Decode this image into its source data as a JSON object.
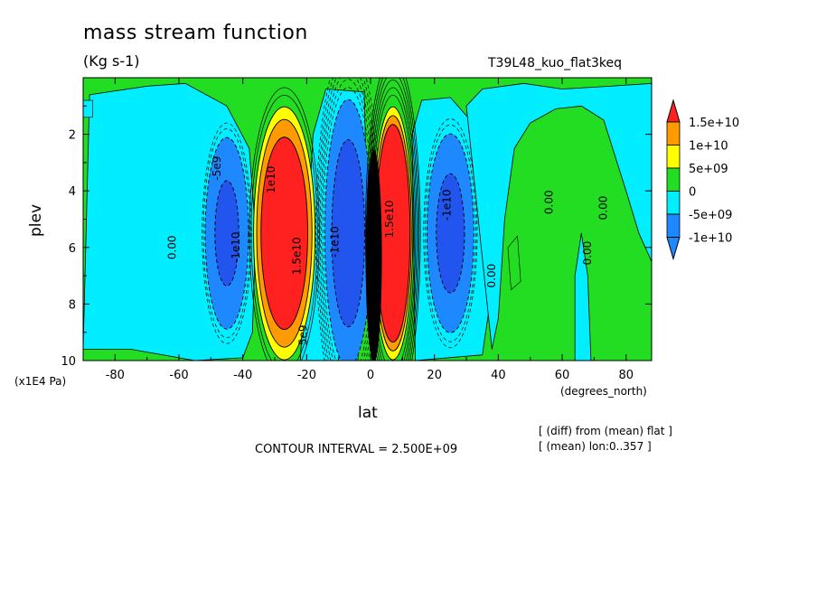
{
  "chart_data": {
    "type": "contour",
    "title": "mass stream function",
    "units": "(Kg s-1)",
    "run_label": "T39L48_kuo_flat3keq",
    "xlabel": "lat",
    "x_unit": "(degrees_north)",
    "ylabel": "plev",
    "y_unit": "(x1E4 Pa)",
    "xlim": [
      -90,
      88
    ],
    "ylim": [
      10,
      0
    ],
    "x_ticks": [
      "-80",
      "-60",
      "-40",
      "-20",
      "0",
      "20",
      "40",
      "60",
      "80"
    ],
    "x_tick_values": [
      -80,
      -60,
      -40,
      -20,
      0,
      20,
      40,
      60,
      80
    ],
    "y_ticks": [
      "2",
      "4",
      "6",
      "8",
      "10"
    ],
    "y_tick_values": [
      2,
      4,
      6,
      8,
      10
    ],
    "contour_interval_text": "CONTOUR INTERVAL = 2.500E+09",
    "notes": [
      "[ (diff) from (mean) flat ]",
      "[ (mean) lon:0..357 ]"
    ],
    "colorbar": {
      "labels": [
        "1.5e+10",
        "1e+10",
        "5e+09",
        "0",
        "-5e+09",
        "-1e+10"
      ],
      "colors": [
        "#ff2020",
        "#ff9a00",
        "#ffff00",
        "#22dd22",
        "#00eeff",
        "#1e88ff"
      ]
    },
    "contour_labels": [
      "0.00",
      "-1e10",
      "-5e9",
      "1e10",
      "1.5e10",
      "5e9",
      "-1e10",
      "1.5e10",
      "-1e10",
      "0.00",
      "0.00",
      "0.00",
      "0.00"
    ],
    "cells": [
      {
        "name": "southern-negative-cell",
        "center_lat": -45,
        "center_plev": 5.5,
        "peak": -10000000000.0
      },
      {
        "name": "southern-positive-cell",
        "center_lat": -27,
        "center_plev": 5.5,
        "peak": 15000000000.0
      },
      {
        "name": "equatorial-negative-cell",
        "center_lat": -7,
        "center_plev": 5.5,
        "peak": -10000000000.0
      },
      {
        "name": "equatorial-positive-cell",
        "center_lat": 7,
        "center_plev": 5.5,
        "peak": 15000000000.0
      },
      {
        "name": "northern-negative-cell",
        "center_lat": 25,
        "center_plev": 5.5,
        "peak": -10000000000.0
      }
    ]
  }
}
